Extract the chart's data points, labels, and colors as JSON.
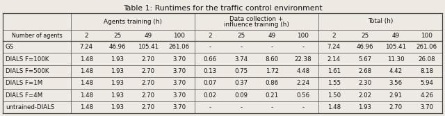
{
  "title": "Table 1: Runtimes for the traffic control environment",
  "col_groups": [
    {
      "label": "Agents training (h)"
    },
    {
      "label1": "Data collection +",
      "label2": "influence training (h)"
    },
    {
      "label": "Total (h)"
    }
  ],
  "row_header": "Number of agents",
  "sub_cols": [
    "2",
    "25",
    "49",
    "100"
  ],
  "rows": [
    {
      "name": "GS",
      "agents": [
        "7.24",
        "46.96",
        "105.41",
        "261.06"
      ],
      "data": [
        "-",
        "-",
        "-",
        "-"
      ],
      "total": [
        "7.24",
        "46.96",
        "105.41",
        "261.06"
      ]
    },
    {
      "name": "DIALS F=100K",
      "agents": [
        "1.48",
        "1.93",
        "2.70",
        "3.70"
      ],
      "data": [
        "0.66",
        "3.74",
        "8.60",
        "22.38"
      ],
      "total": [
        "2.14",
        "5.67",
        "11.30",
        "26.08"
      ]
    },
    {
      "name": "DIALS F=500K",
      "agents": [
        "1.48",
        "1.93",
        "2.70",
        "3.70"
      ],
      "data": [
        "0.13",
        "0.75",
        "1.72",
        "4.48"
      ],
      "total": [
        "1.61",
        "2.68",
        "4.42",
        "8.18"
      ]
    },
    {
      "name": "DIALS F=1M",
      "agents": [
        "1.48",
        "1.93",
        "2.70",
        "3.70"
      ],
      "data": [
        "0.07",
        "0.37",
        "0.86",
        "2.24"
      ],
      "total": [
        "1.55",
        "2.30",
        "3.56",
        "5.94"
      ]
    },
    {
      "name": "DIALS F=4M",
      "agents": [
        "1.48",
        "1.93",
        "2.70",
        "3.70"
      ],
      "data": [
        "0.02",
        "0.09",
        "0.21",
        "0.56"
      ],
      "total": [
        "1.50",
        "2.02",
        "2.91",
        "4.26"
      ]
    },
    {
      "name": "untrained-DIALS",
      "agents": [
        "1.48",
        "1.93",
        "2.70",
        "3.70"
      ],
      "data": [
        "-",
        "-",
        "-",
        "-"
      ],
      "total": [
        "1.48",
        "1.93",
        "2.70",
        "3.70"
      ]
    }
  ],
  "bg_color": "#eeeae3",
  "line_color": "#444444",
  "text_color": "#111111",
  "title_fontsize": 7.8,
  "header_fontsize": 6.4,
  "cell_fontsize": 6.2,
  "name_fontsize": 6.2
}
